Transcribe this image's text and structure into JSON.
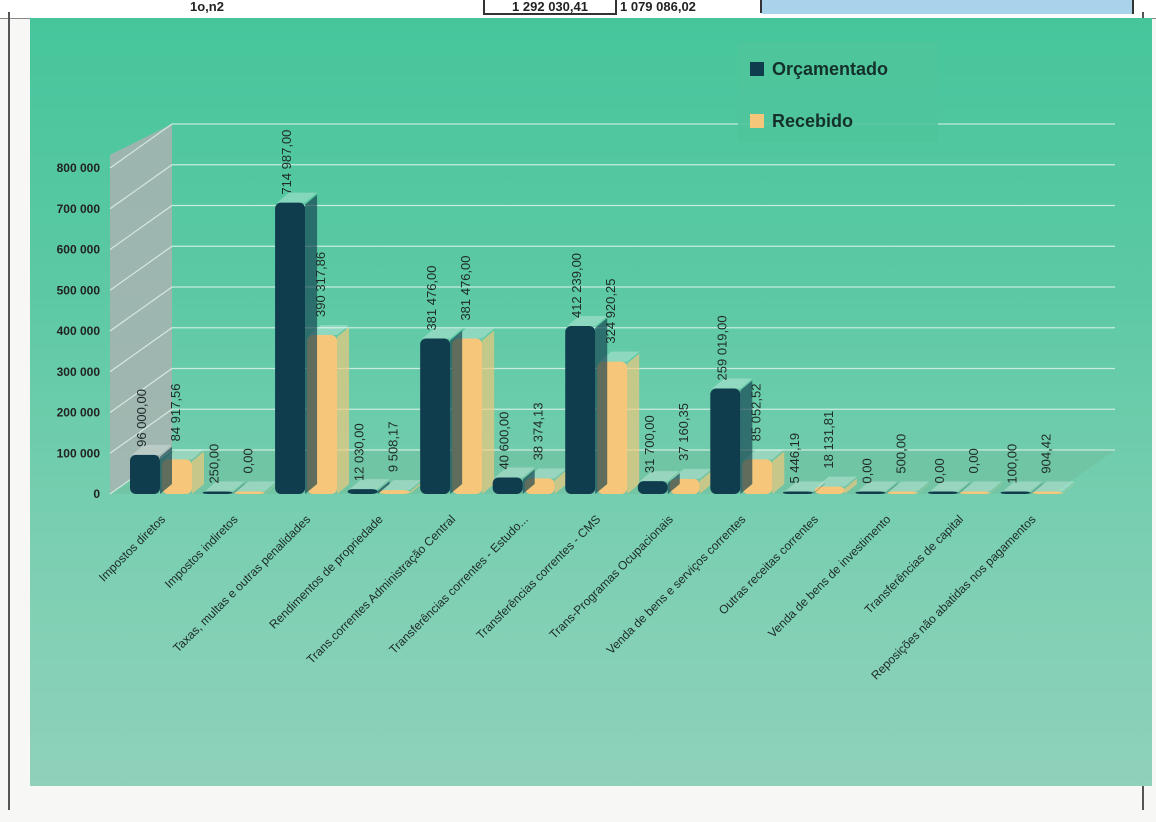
{
  "strip": {
    "left_text": "1o,n2",
    "middle_text": "1 292 030,41",
    "right_text": "1 079 086,02"
  },
  "chart_data": {
    "type": "bar",
    "categories": [
      "Impostos diretos",
      "Impostos indiretos",
      "Taxas, multas e outras penalidades",
      "Rendimentos de propriedade",
      "Trans.correntes Administração Central",
      "Transferências correntes - Estudo...",
      "Transferências correntes - CMS",
      "Trans-Programas Ocupacionais",
      "Venda de bens e serviços correntes",
      "Outras receitas correntes",
      "Venda de bens de investimento",
      "Transferências de capital",
      "Reposições não abatidas nos pagamentos"
    ],
    "series": [
      {
        "name": "Orçamentado",
        "color": "#0f3d4d",
        "values": [
          96000,
          250,
          714987,
          12030,
          381476,
          40600,
          412239,
          31700,
          259019,
          5446.19,
          0,
          0,
          100
        ],
        "labels": [
          "96 000,00",
          "250,00",
          "714 987,00",
          "12 030,00",
          "381 476,00",
          "40 600,00",
          "412 239,00",
          "31 700,00",
          "259 019,00",
          "5 446,19",
          "0,00",
          "0,00",
          "100,00"
        ]
      },
      {
        "name": "Recebido",
        "color": "#f6c77a",
        "values": [
          84917.56,
          0,
          390317.86,
          9508.17,
          381476,
          38374.13,
          324920.25,
          37160.35,
          85052.52,
          18131.81,
          500,
          0,
          904.42
        ],
        "labels": [
          "84 917,56",
          "0,00",
          "390 317,86",
          "9 508,17",
          "381 476,00",
          "38 374,13",
          "324 920,25",
          "37 160,35",
          "85 052,52",
          "18 131,81",
          "500,00",
          "0,00",
          "904,42"
        ]
      }
    ],
    "ylim": [
      0,
      800000
    ],
    "yticks": [
      {
        "value": 0,
        "label": "0"
      },
      {
        "value": 100000,
        "label": "100 000"
      },
      {
        "value": 200000,
        "label": "200 000"
      },
      {
        "value": 300000,
        "label": "300 000"
      },
      {
        "value": 400000,
        "label": "400 000"
      },
      {
        "value": 500000,
        "label": "500 000"
      },
      {
        "value": 600000,
        "label": "600 000"
      },
      {
        "value": 700000,
        "label": "700 000"
      },
      {
        "value": 800000,
        "label": "800 000"
      }
    ],
    "legend_position": "top-right",
    "grid": true,
    "three_d": true
  }
}
